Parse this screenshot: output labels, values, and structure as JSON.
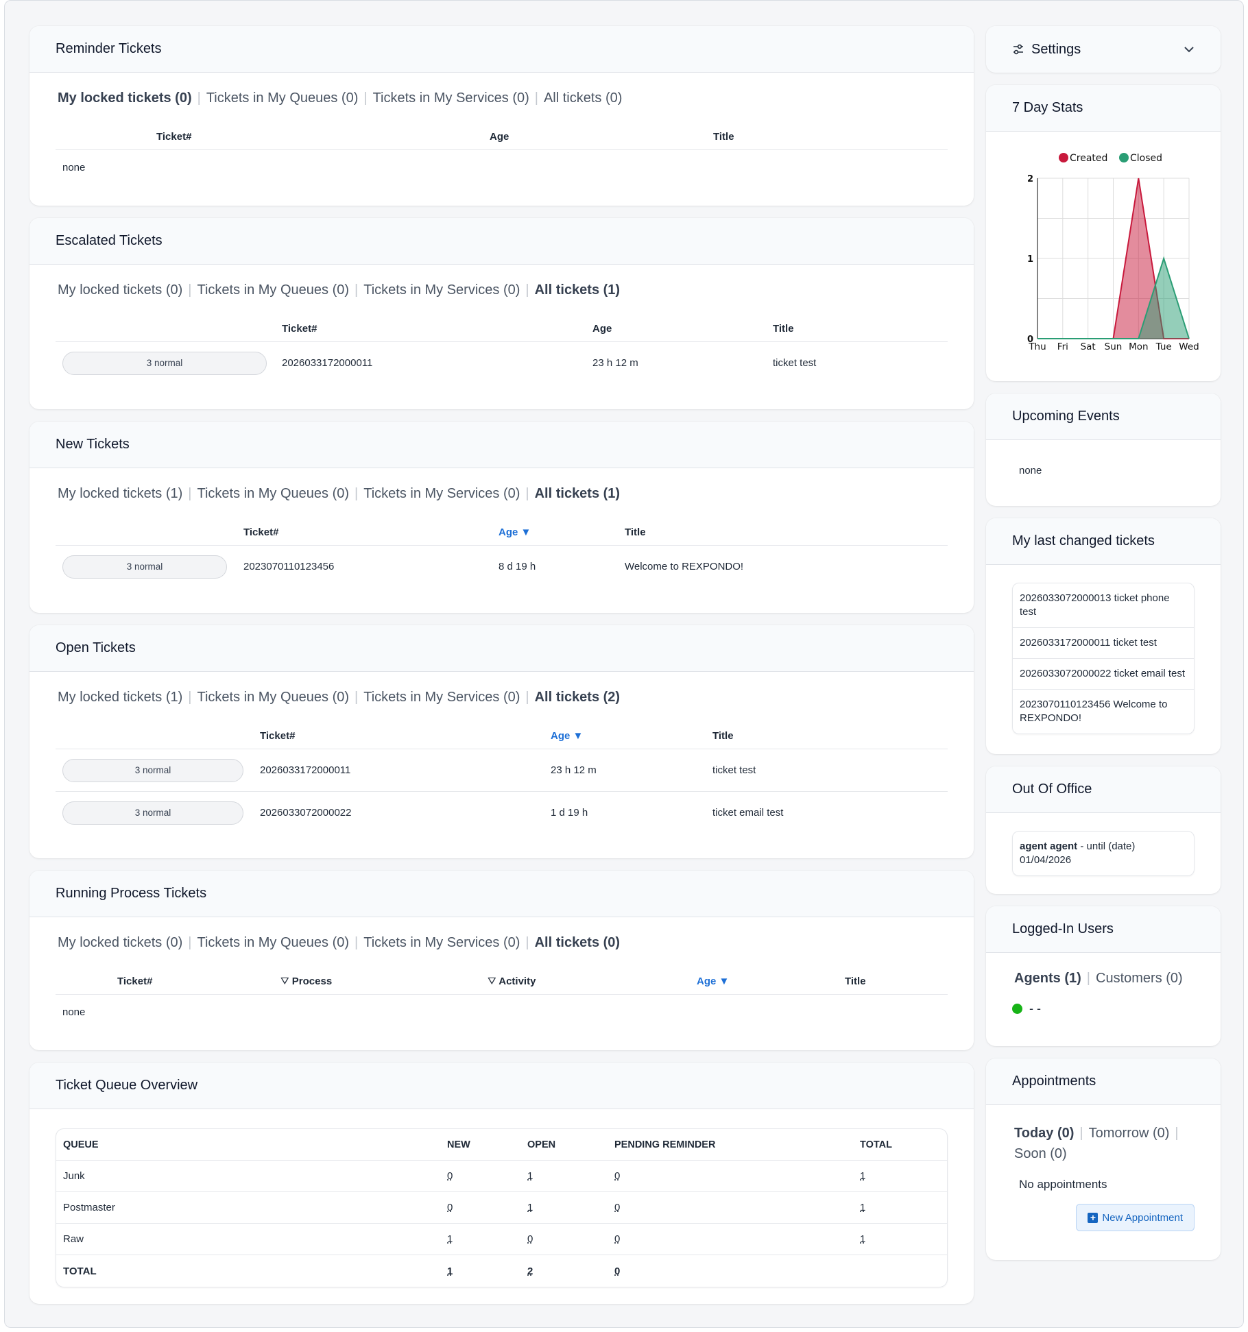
{
  "reminder": {
    "title": "Reminder Tickets",
    "tabs": [
      {
        "label": "My locked tickets (0)",
        "active": true
      },
      {
        "label": "Tickets in My Queues (0)",
        "active": false
      },
      {
        "label": "Tickets in My Services (0)",
        "active": false
      },
      {
        "label": "All tickets (0)",
        "active": false
      }
    ],
    "columns": [
      "Ticket#",
      "Age",
      "Title"
    ],
    "empty": "none"
  },
  "escalated": {
    "title": "Escalated Tickets",
    "tabs": [
      {
        "label": "My locked tickets (0)",
        "active": false
      },
      {
        "label": "Tickets in My Queues (0)",
        "active": false
      },
      {
        "label": "Tickets in My Services (0)",
        "active": false
      },
      {
        "label": "All tickets (1)",
        "active": true
      }
    ],
    "columns": [
      "Ticket#",
      "Age",
      "Title"
    ],
    "rows": [
      {
        "priority": "3 normal",
        "ticket": "2026033172000011",
        "age": "23 h 12 m",
        "title": "ticket test"
      }
    ]
  },
  "new_tickets": {
    "title": "New Tickets",
    "tabs": [
      {
        "label": "My locked tickets (1)",
        "active": false
      },
      {
        "label": "Tickets in My Queues (0)",
        "active": false
      },
      {
        "label": "Tickets in My Services (0)",
        "active": false
      },
      {
        "label": "All tickets (1)",
        "active": true
      }
    ],
    "columns": [
      "Ticket#",
      "Age",
      "Title"
    ],
    "rows": [
      {
        "priority": "3 normal",
        "ticket": "2023070110123456",
        "age": "8 d 19 h",
        "title": "Welcome to REXPONDO!"
      }
    ]
  },
  "open_tickets": {
    "title": "Open Tickets",
    "tabs": [
      {
        "label": "My locked tickets (1)",
        "active": false
      },
      {
        "label": "Tickets in My Queues (0)",
        "active": false
      },
      {
        "label": "Tickets in My Services (0)",
        "active": false
      },
      {
        "label": "All tickets (2)",
        "active": true
      }
    ],
    "columns": [
      "Ticket#",
      "Age",
      "Title"
    ],
    "rows": [
      {
        "priority": "3 normal",
        "ticket": "2026033172000011",
        "age": "23 h 12 m",
        "title": "ticket test"
      },
      {
        "priority": "3 normal",
        "ticket": "2026033072000022",
        "age": "1 d 19 h",
        "title": "ticket email test"
      }
    ]
  },
  "process": {
    "title": "Running Process Tickets",
    "tabs": [
      {
        "label": "My locked tickets (0)",
        "active": false
      },
      {
        "label": "Tickets in My Queues (0)",
        "active": false
      },
      {
        "label": "Tickets in My Services (0)",
        "active": false
      },
      {
        "label": "All tickets (0)",
        "active": true
      }
    ],
    "columns": [
      "Ticket#",
      "Process",
      "Activity",
      "Age",
      "Title"
    ],
    "empty": "none"
  },
  "queue_overview": {
    "title": "Ticket Queue Overview",
    "columns": [
      "Queue",
      "New",
      "Open",
      "Pending Reminder",
      "Total"
    ],
    "rows": [
      {
        "queue": "Junk",
        "new": "0",
        "open": "1",
        "pending": "0",
        "total": "1"
      },
      {
        "queue": "Postmaster",
        "new": "0",
        "open": "1",
        "pending": "0",
        "total": "1"
      },
      {
        "queue": "Raw",
        "new": "1",
        "open": "0",
        "pending": "0",
        "total": "1"
      },
      {
        "queue": "TOTAL",
        "new": "1",
        "open": "2",
        "pending": "0",
        "total": ""
      }
    ]
  },
  "settings": {
    "label": "Settings"
  },
  "stats": {
    "title": "7 Day Stats"
  },
  "chart_data": {
    "type": "area",
    "categories": [
      "Thu",
      "Fri",
      "Sat",
      "Sun",
      "Mon",
      "Tue",
      "Wed"
    ],
    "series": [
      {
        "name": "Created",
        "values": [
          0,
          0,
          0,
          0,
          2,
          0,
          0
        ],
        "color": "#c8193c"
      },
      {
        "name": "Closed",
        "values": [
          0,
          0,
          0,
          0,
          0,
          1,
          0
        ],
        "color": "#2a9d74"
      }
    ],
    "yticks": [
      "0",
      "1",
      "2"
    ],
    "ylim": [
      0,
      2
    ],
    "grid": true,
    "legend": "top"
  },
  "events": {
    "title": "Upcoming Events",
    "empty": "none"
  },
  "last_changed": {
    "title": "My last changed tickets",
    "items": [
      "2026033072000013 ticket phone test",
      "2026033172000011 ticket test",
      "2026033072000022 ticket email test",
      "2023070110123456 Welcome to REXPONDO!"
    ]
  },
  "ooo": {
    "title": "Out Of Office",
    "name": "agent agent",
    "until": " - until (date) 01/04/2026"
  },
  "logged_in": {
    "title": "Logged-In Users",
    "tabs": [
      {
        "label": "Agents (1)",
        "active": true
      },
      {
        "label": "Customers (0)",
        "active": false
      }
    ],
    "user": "- -"
  },
  "appointments": {
    "title": "Appointments",
    "tabs": [
      {
        "label": "Today (0)",
        "active": true
      },
      {
        "label": "Tomorrow (0)",
        "active": false
      },
      {
        "label": "Soon (0)",
        "active": false
      }
    ],
    "empty": "No appointments",
    "button": "New Appointment"
  }
}
